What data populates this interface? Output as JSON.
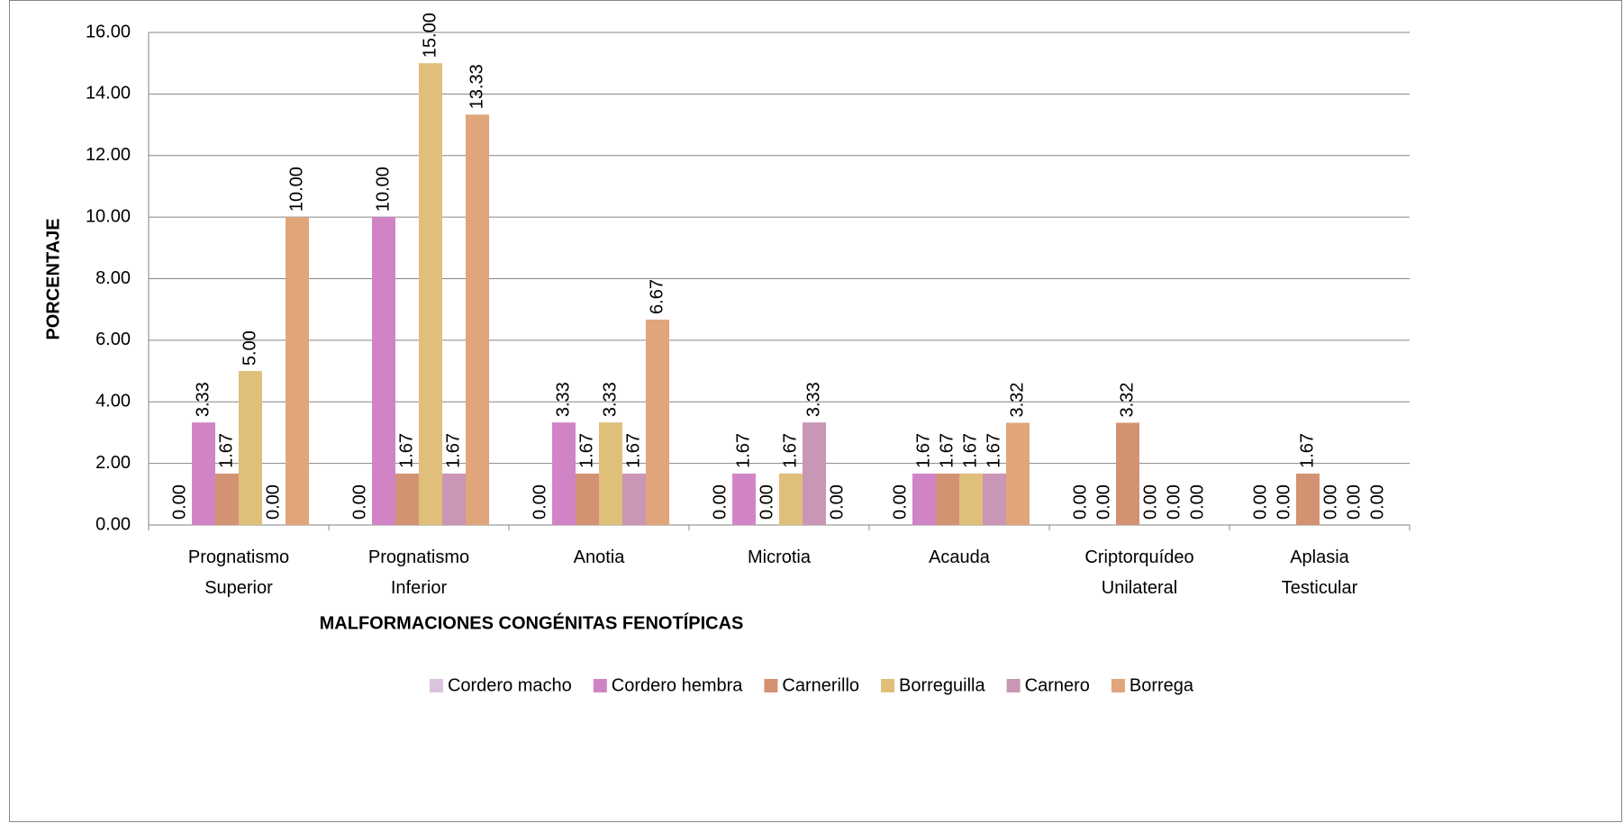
{
  "chart_data": {
    "type": "bar",
    "x_label": "MALFORMACIONES CONGÉNITAS FENOTÍPICAS",
    "y_label": "PORCENTAJE",
    "categories": [
      "Prognatismo Superior",
      "Prognatismo Inferior",
      "Anotia",
      "Microtia",
      "Acauda",
      "Criptorquídeo Unilateral",
      "Aplasia Testicular"
    ],
    "series": [
      {
        "name": "Cordero macho",
        "color": "#d9c3dd",
        "values": [
          0,
          0,
          0,
          0,
          0,
          0,
          0
        ],
        "value_labels": [
          "0.00",
          "0.00",
          "0.00",
          "0.00",
          "0.00",
          "0.00",
          "0.00"
        ]
      },
      {
        "name": "Cordero hembra",
        "color": "#d084c6",
        "values": [
          3.33,
          10,
          3.33,
          1.67,
          1.67,
          0,
          0
        ],
        "value_labels": [
          "3.33",
          "10.00",
          "3.33",
          "1.67",
          "1.67",
          "0.00",
          "0.00"
        ]
      },
      {
        "name": "Carnerillo",
        "color": "#d39373",
        "values": [
          1.67,
          1.67,
          1.67,
          0,
          1.67,
          3.32,
          1.67
        ],
        "value_labels": [
          "1.67",
          "1.67",
          "1.67",
          "0.00",
          "1.67",
          "3.32",
          "1.67"
        ]
      },
      {
        "name": "Borreguilla",
        "color": "#dfbf7a",
        "values": [
          5,
          15,
          3.33,
          1.67,
          1.67,
          0,
          0
        ],
        "value_labels": [
          "5.00",
          "15.00",
          "3.33",
          "1.67",
          "1.67",
          "0.00",
          "0.00"
        ]
      },
      {
        "name": "Carnero",
        "color": "#c996b5",
        "values": [
          0,
          1.67,
          1.67,
          3.33,
          1.67,
          0,
          0
        ],
        "value_labels": [
          "0.00",
          "1.67",
          "1.67",
          "3.33",
          "1.67",
          "0.00",
          "0.00"
        ]
      },
      {
        "name": "Borrega",
        "color": "#e0a57a",
        "values": [
          10,
          13.33,
          6.67,
          0,
          3.32,
          0,
          0
        ],
        "value_labels": [
          "10.00",
          "13.33",
          "6.67",
          "0.00",
          "3.32",
          "0.00",
          "0.00"
        ]
      }
    ],
    "ylim": [
      0,
      16
    ],
    "yticks": [
      {
        "value": 0,
        "label": "0.00"
      },
      {
        "value": 2,
        "label": "2.00"
      },
      {
        "value": 4,
        "label": "4.00"
      },
      {
        "value": 6,
        "label": "6.00"
      },
      {
        "value": 8,
        "label": "8.00"
      },
      {
        "value": 10,
        "label": "10.00"
      },
      {
        "value": 12,
        "label": "12.00"
      },
      {
        "value": 14,
        "label": "14.00"
      },
      {
        "value": 16,
        "label": "16.00"
      }
    ],
    "grid": true,
    "legend": "bottom"
  }
}
